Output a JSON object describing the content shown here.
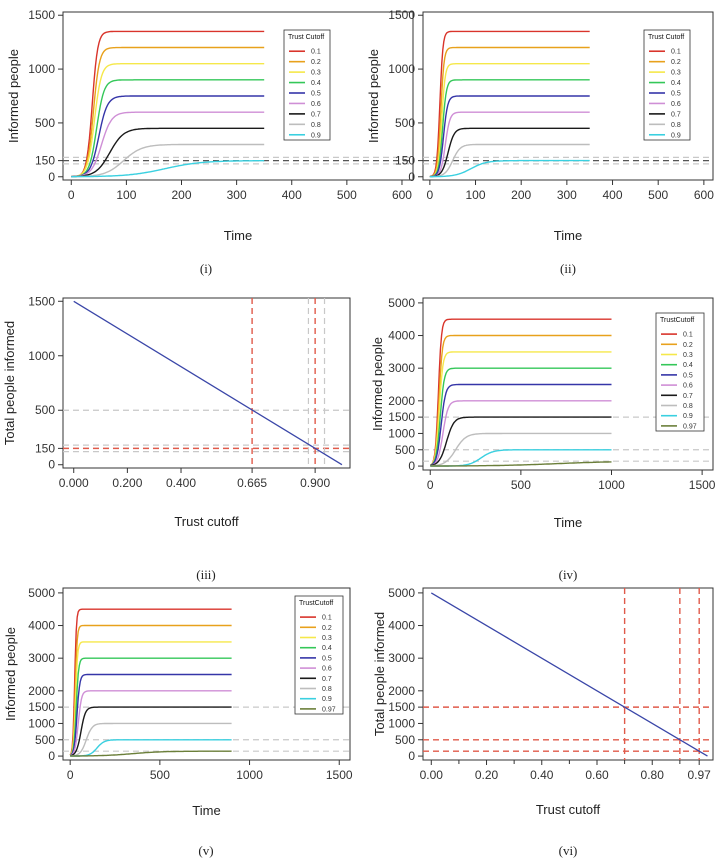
{
  "colors": {
    "0.1": "#d9342b",
    "0.2": "#e8a11c",
    "0.3": "#f5e84a",
    "0.4": "#34c759",
    "0.5": "#3535a8",
    "0.6": "#cf8fd6",
    "0.7": "#1a1a1a",
    "0.8": "#bdbdbd",
    "0.9": "#3ad0e0",
    "0.97": "#6b7f3a",
    "diag": "#3a46a8",
    "ref_gray": "#c8c8c8",
    "ref_dark": "#555555",
    "ref_red": "#e05a4a"
  },
  "chart_data": [
    {
      "id": "i",
      "type": "line",
      "caption": "(i)",
      "xlabel": "Time",
      "ylabel": "Informed people",
      "xlim": [
        -15,
        620
      ],
      "ylim": [
        -30,
        1530
      ],
      "xticks": [
        0,
        100,
        200,
        300,
        400,
        500,
        600
      ],
      "yticks": [
        0,
        150,
        500,
        1000,
        1500
      ],
      "legend_title": "Trust Cutoff",
      "legend_entries": [
        "0.1",
        "0.2",
        "0.3",
        "0.4",
        "0.5",
        "0.6",
        "0.7",
        "0.8",
        "0.9"
      ],
      "hlines": [
        {
          "y": 150,
          "style": "dark"
        },
        {
          "y": 180,
          "style": "gray"
        },
        {
          "y": 120,
          "style": "gray"
        }
      ],
      "x_end": 350,
      "series": [
        {
          "name": "0.1",
          "plateau": 1350,
          "mid": 38,
          "rate": 0.2
        },
        {
          "name": "0.2",
          "plateau": 1200,
          "mid": 40,
          "rate": 0.18
        },
        {
          "name": "0.3",
          "plateau": 1050,
          "mid": 42,
          "rate": 0.16
        },
        {
          "name": "0.4",
          "plateau": 900,
          "mid": 46,
          "rate": 0.15
        },
        {
          "name": "0.5",
          "plateau": 750,
          "mid": 50,
          "rate": 0.13
        },
        {
          "name": "0.6",
          "plateau": 600,
          "mid": 55,
          "rate": 0.11
        },
        {
          "name": "0.7",
          "plateau": 450,
          "mid": 70,
          "rate": 0.08
        },
        {
          "name": "0.8",
          "plateau": 300,
          "mid": 95,
          "rate": 0.06
        },
        {
          "name": "0.9",
          "plateau": 150,
          "mid": 170,
          "rate": 0.03
        }
      ]
    },
    {
      "id": "ii",
      "type": "line",
      "caption": "(ii)",
      "xlabel": "Time",
      "ylabel": "Informed people",
      "xlim": [
        -15,
        620
      ],
      "ylim": [
        -30,
        1530
      ],
      "xticks": [
        0,
        100,
        200,
        300,
        400,
        500,
        600
      ],
      "yticks": [
        0,
        150,
        500,
        1000,
        1500
      ],
      "legend_title": "Trust Cutoff",
      "legend_entries": [
        "0.1",
        "0.2",
        "0.3",
        "0.4",
        "0.5",
        "0.6",
        "0.7",
        "0.8",
        "0.9"
      ],
      "hlines": [
        {
          "y": 150,
          "style": "dark"
        },
        {
          "y": 180,
          "style": "gray"
        },
        {
          "y": 120,
          "style": "gray"
        }
      ],
      "x_end": 350,
      "series": [
        {
          "name": "0.1",
          "plateau": 1350,
          "mid": 22,
          "rate": 0.3
        },
        {
          "name": "0.2",
          "plateau": 1200,
          "mid": 24,
          "rate": 0.28
        },
        {
          "name": "0.3",
          "plateau": 1050,
          "mid": 26,
          "rate": 0.26
        },
        {
          "name": "0.4",
          "plateau": 900,
          "mid": 28,
          "rate": 0.24
        },
        {
          "name": "0.5",
          "plateau": 750,
          "mid": 30,
          "rate": 0.22
        },
        {
          "name": "0.6",
          "plateau": 600,
          "mid": 34,
          "rate": 0.2
        },
        {
          "name": "0.7",
          "plateau": 450,
          "mid": 40,
          "rate": 0.15
        },
        {
          "name": "0.8",
          "plateau": 300,
          "mid": 50,
          "rate": 0.12
        },
        {
          "name": "0.9",
          "plateau": 150,
          "mid": 90,
          "rate": 0.06
        }
      ]
    },
    {
      "id": "iii",
      "type": "line",
      "caption": "(iii)",
      "xlabel": "Trust cutoff",
      "ylabel": "Total people informed",
      "xlim": [
        -0.04,
        1.03
      ],
      "ylim": [
        -30,
        1530
      ],
      "xticks": [
        0,
        0.2,
        0.4,
        0.665,
        0.9
      ],
      "xtick_labels": [
        "0.000",
        "0.200",
        "0.400",
        "0.665",
        "0.900"
      ],
      "yticks": [
        0,
        150,
        500,
        1000,
        1500
      ],
      "line": {
        "x": [
          0,
          1
        ],
        "y": [
          1500,
          0
        ]
      },
      "hlines": [
        {
          "y": 500,
          "style": "gray"
        },
        {
          "y": 150,
          "style": "red"
        },
        {
          "y": 180,
          "style": "gray"
        },
        {
          "y": 120,
          "style": "gray"
        }
      ],
      "vlines": [
        {
          "x": 0.665,
          "style": "red"
        },
        {
          "x": 0.9,
          "style": "red"
        },
        {
          "x": 0.875,
          "style": "gray"
        },
        {
          "x": 0.935,
          "style": "gray"
        }
      ]
    },
    {
      "id": "iv",
      "type": "line",
      "caption": "(iv)",
      "xlabel": "Time",
      "ylabel": "Informed people",
      "xlim": [
        -40,
        1560
      ],
      "ylim": [
        -120,
        5150
      ],
      "xticks": [
        0,
        500,
        1000,
        1500
      ],
      "yticks": [
        0,
        500,
        1000,
        1500,
        2000,
        3000,
        4000,
        5000
      ],
      "legend_title": "TrustCutoff",
      "legend_entries": [
        "0.1",
        "0.2",
        "0.3",
        "0.4",
        "0.5",
        "0.6",
        "0.7",
        "0.8",
        "0.9",
        "0.97"
      ],
      "hlines": [
        {
          "y": 1500,
          "style": "gray"
        },
        {
          "y": 500,
          "style": "gray"
        },
        {
          "y": 150,
          "style": "gray"
        }
      ],
      "x_end": 1000,
      "series": [
        {
          "name": "0.1",
          "plateau": 4500,
          "mid": 45,
          "rate": 0.12
        },
        {
          "name": "0.2",
          "plateau": 4000,
          "mid": 48,
          "rate": 0.11
        },
        {
          "name": "0.3",
          "plateau": 3500,
          "mid": 50,
          "rate": 0.1
        },
        {
          "name": "0.4",
          "plateau": 3000,
          "mid": 55,
          "rate": 0.09
        },
        {
          "name": "0.5",
          "plateau": 2500,
          "mid": 60,
          "rate": 0.08
        },
        {
          "name": "0.6",
          "plateau": 2000,
          "mid": 70,
          "rate": 0.07
        },
        {
          "name": "0.7",
          "plateau": 1500,
          "mid": 90,
          "rate": 0.05
        },
        {
          "name": "0.8",
          "plateau": 1000,
          "mid": 140,
          "rate": 0.035
        },
        {
          "name": "0.9",
          "plateau": 500,
          "mid": 280,
          "rate": 0.03
        },
        {
          "name": "0.97",
          "plateau": 150,
          "mid": 700,
          "rate": 0.006
        }
      ]
    },
    {
      "id": "v",
      "type": "line",
      "caption": "(v)",
      "xlabel": "Time",
      "ylabel": "Informed people",
      "xlim": [
        -40,
        1560
      ],
      "ylim": [
        -120,
        5150
      ],
      "xticks": [
        0,
        500,
        1000,
        1500
      ],
      "yticks": [
        0,
        500,
        1000,
        1500,
        2000,
        3000,
        4000,
        5000
      ],
      "legend_title": "TrustCutoff",
      "legend_entries": [
        "0.1",
        "0.2",
        "0.3",
        "0.4",
        "0.5",
        "0.6",
        "0.7",
        "0.8",
        "0.9",
        "0.97"
      ],
      "hlines": [
        {
          "y": 1500,
          "style": "gray"
        },
        {
          "y": 500,
          "style": "gray"
        },
        {
          "y": 150,
          "style": "gray"
        }
      ],
      "x_end": 900,
      "series": [
        {
          "name": "0.1",
          "plateau": 4500,
          "mid": 25,
          "rate": 0.2
        },
        {
          "name": "0.2",
          "plateau": 4000,
          "mid": 28,
          "rate": 0.18
        },
        {
          "name": "0.3",
          "plateau": 3500,
          "mid": 30,
          "rate": 0.17
        },
        {
          "name": "0.4",
          "plateau": 3000,
          "mid": 34,
          "rate": 0.15
        },
        {
          "name": "0.5",
          "plateau": 2500,
          "mid": 38,
          "rate": 0.13
        },
        {
          "name": "0.6",
          "plateau": 2000,
          "mid": 45,
          "rate": 0.11
        },
        {
          "name": "0.7",
          "plateau": 1500,
          "mid": 60,
          "rate": 0.08
        },
        {
          "name": "0.8",
          "plateau": 1000,
          "mid": 90,
          "rate": 0.06
        },
        {
          "name": "0.9",
          "plateau": 500,
          "mid": 150,
          "rate": 0.05
        },
        {
          "name": "0.97",
          "plateau": 150,
          "mid": 350,
          "rate": 0.012
        }
      ]
    },
    {
      "id": "vi",
      "type": "line",
      "caption": "(vi)",
      "xlabel": "Trust cutoff",
      "ylabel": "Total people informed",
      "xlim": [
        -0.03,
        1.02
      ],
      "ylim": [
        -120,
        5150
      ],
      "xticks": [
        0,
        0.2,
        0.4,
        0.6,
        0.8,
        0.97
      ],
      "xtick_labels": [
        "0.00",
        "0.20",
        "0.40",
        "0.60",
        "0.80",
        "0.97"
      ],
      "minor_xticks": [
        0.1,
        0.3,
        0.5,
        0.7,
        0.9
      ],
      "yticks": [
        0,
        500,
        1000,
        1500,
        2000,
        3000,
        4000,
        5000
      ],
      "line": {
        "x": [
          0,
          1
        ],
        "y": [
          5000,
          0
        ]
      },
      "hlines": [
        {
          "y": 1500,
          "style": "red"
        },
        {
          "y": 500,
          "style": "red"
        },
        {
          "y": 150,
          "style": "red"
        }
      ],
      "vlines": [
        {
          "x": 0.7,
          "style": "red"
        },
        {
          "x": 0.9,
          "style": "red"
        },
        {
          "x": 0.97,
          "style": "red"
        }
      ]
    }
  ]
}
